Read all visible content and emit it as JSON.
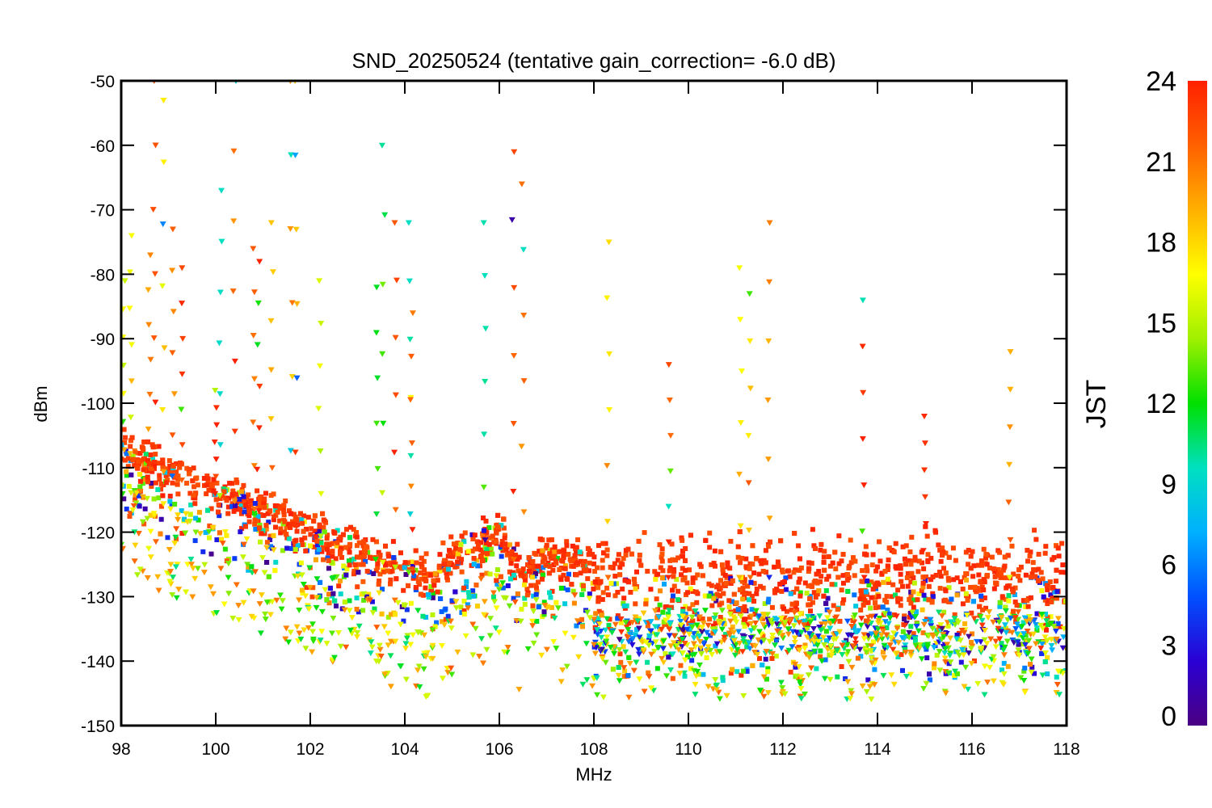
{
  "chart_data": {
    "type": "scatter",
    "title": "SND_20250524 (tentative gain_correction= -6.0 dB)",
    "xlabel": "MHz",
    "ylabel": "dBm",
    "xlim": [
      98,
      118
    ],
    "ylim": [
      -150,
      -50
    ],
    "x_ticks": [
      "98",
      "100",
      "102",
      "104",
      "106",
      "108",
      "110",
      "112",
      "114",
      "116",
      "118"
    ],
    "y_ticks": [
      "-50",
      "-60",
      "-70",
      "-80",
      "-90",
      "-100",
      "-110",
      "-120",
      "-130",
      "-140",
      "-150"
    ],
    "colorbar": {
      "label": "JST",
      "range": [
        0,
        24
      ],
      "ticks": [
        "0",
        "3",
        "6",
        "9",
        "12",
        "15",
        "18",
        "21",
        "24"
      ],
      "colormap": "rainbow",
      "colors": [
        "#4b0082",
        "#2a00d4",
        "#0050ff",
        "#00b0ff",
        "#00e0c0",
        "#00e000",
        "#a0f000",
        "#ffff00",
        "#ffb000",
        "#ff6000",
        "#ff2000"
      ]
    },
    "noise_floor": [
      {
        "x": 98.0,
        "y": -107
      },
      {
        "x": 99.0,
        "y": -111
      },
      {
        "x": 100.0,
        "y": -114
      },
      {
        "x": 101.0,
        "y": -117
      },
      {
        "x": 102.0,
        "y": -120
      },
      {
        "x": 103.0,
        "y": -123
      },
      {
        "x": 104.0,
        "y": -126
      },
      {
        "x": 104.5,
        "y": -127
      },
      {
        "x": 105.0,
        "y": -124
      },
      {
        "x": 106.0,
        "y": -120
      },
      {
        "x": 106.5,
        "y": -127
      },
      {
        "x": 107.0,
        "y": -124
      },
      {
        "x": 107.9,
        "y": -125
      },
      {
        "x": 108.0,
        "y": -127
      },
      {
        "x": 112.0,
        "y": -127
      },
      {
        "x": 116.0,
        "y": -127
      },
      {
        "x": 118.0,
        "y": -127
      }
    ],
    "peaks": [
      {
        "x": 98.05,
        "y_top": -81,
        "hour": 16
      },
      {
        "x": 98.2,
        "y_top": -74,
        "hour": 17
      },
      {
        "x": 98.6,
        "y_top": -77,
        "hour": 20
      },
      {
        "x": 98.7,
        "y_top": -50,
        "hour": 22
      },
      {
        "x": 98.9,
        "y_top": -53,
        "hour": 17
      },
      {
        "x": 99.1,
        "y_top": -73,
        "hour": 21
      },
      {
        "x": 99.3,
        "y_top": -79,
        "hour": 23
      },
      {
        "x": 100.0,
        "y_top": -98,
        "hour": 24
      },
      {
        "x": 100.1,
        "y_top": -67,
        "hour": 10
      },
      {
        "x": 100.4,
        "y_top": -50,
        "hour": 22
      },
      {
        "x": 100.8,
        "y_top": -76,
        "hour": 21
      },
      {
        "x": 100.9,
        "y_top": -78,
        "hour": 24
      },
      {
        "x": 101.2,
        "y_top": -72,
        "hour": 19
      },
      {
        "x": 101.6,
        "y_top": -50,
        "hour": 20
      },
      {
        "x": 101.7,
        "y_top": -50,
        "hour": 19
      },
      {
        "x": 102.2,
        "y_top": -81,
        "hour": 16
      },
      {
        "x": 103.4,
        "y_top": -82,
        "hour": 12
      },
      {
        "x": 103.55,
        "y_top": -60,
        "hour": 12
      },
      {
        "x": 103.8,
        "y_top": -72,
        "hour": 22
      },
      {
        "x": 104.1,
        "y_top": -72,
        "hour": 10
      },
      {
        "x": 104.15,
        "y_top": -86,
        "hour": 21
      },
      {
        "x": 105.7,
        "y_top": -72,
        "hour": 10
      },
      {
        "x": 106.3,
        "y_top": -61,
        "hour": 22
      },
      {
        "x": 106.5,
        "y_top": -66,
        "hour": 21
      },
      {
        "x": 108.3,
        "y_top": -75,
        "hour": 18
      },
      {
        "x": 109.6,
        "y_top": -94,
        "hour": 22
      },
      {
        "x": 111.1,
        "y_top": -79,
        "hour": 17
      },
      {
        "x": 111.3,
        "y_top": -83,
        "hour": 18
      },
      {
        "x": 111.7,
        "y_top": -72,
        "hour": 20
      },
      {
        "x": 113.7,
        "y_top": -84,
        "hour": 24
      },
      {
        "x": 115.0,
        "y_top": -102,
        "hour": 24
      },
      {
        "x": 116.8,
        "y_top": -92,
        "hour": 20
      }
    ]
  }
}
